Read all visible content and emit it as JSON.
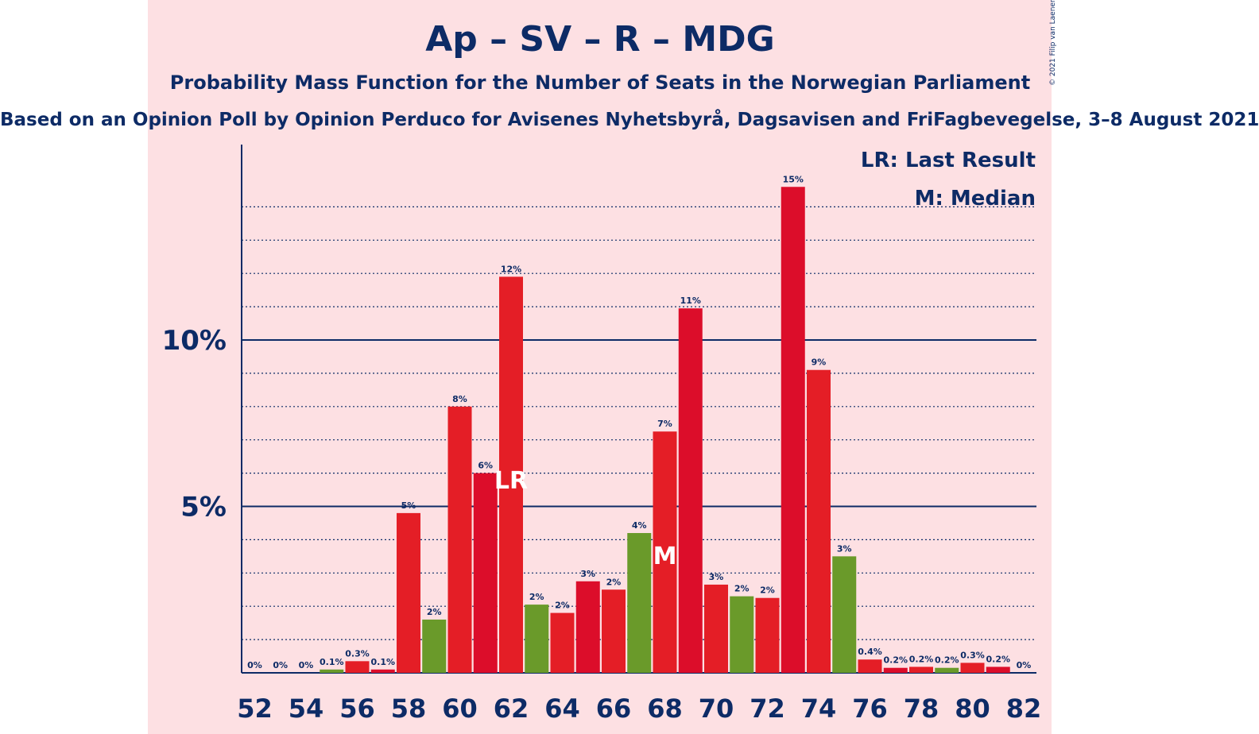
{
  "title": "Ap – SV – R – MDG",
  "subtitle": "Probability Mass Function for the Number of Seats in the Norwegian Parliament",
  "source": "Based on an Opinion Poll by Opinion Perduco for Avisenes Nyhetsbyrå, Dagsavisen and FriFagbevegelse, 3–8 August 2021",
  "copyright": "© 2021 Filip van Laenen",
  "legend": [
    "LR: Last Result",
    "M: Median"
  ],
  "colors": {
    "background": "#fde0e3",
    "text": "#0d2b66",
    "red_a": "#e41e26",
    "red_b": "#dc0d2a",
    "green": "#6a9a2a"
  },
  "chart_data": {
    "type": "bar",
    "x": [
      52,
      53,
      54,
      55,
      56,
      57,
      58,
      59,
      60,
      61,
      62,
      63,
      64,
      65,
      66,
      67,
      68,
      69,
      70,
      71,
      72,
      73,
      74,
      75,
      76,
      77,
      78,
      79,
      80,
      81,
      82
    ],
    "values": [
      0,
      0,
      0,
      0.1,
      0.35,
      0.1,
      4.8,
      1.6,
      8.0,
      6.0,
      11.9,
      2.05,
      1.8,
      2.75,
      2.5,
      4.2,
      7.25,
      10.95,
      2.65,
      2.3,
      2.25,
      14.6,
      9.1,
      3.5,
      0.4,
      0.15,
      0.18,
      0.15,
      0.3,
      0.18,
      0
    ],
    "labels": [
      "0%",
      "0%",
      "0%",
      "0.1%",
      "0.3%",
      "0.1%",
      "5%",
      "2%",
      "8%",
      "6%",
      "12%",
      "2%",
      "2%",
      "3%",
      "2%",
      "4%",
      "7%",
      "11%",
      "3%",
      "2%",
      "2%",
      "15%",
      "9%",
      "3%",
      "0.4%",
      "0.2%",
      "0.2%",
      "0.2%",
      "0.3%",
      "0.2%",
      "0%"
    ],
    "colors": [
      "red_a",
      "red_b",
      "red_a",
      "green",
      "red_a",
      "red_b",
      "red_a",
      "green",
      "red_a",
      "red_b",
      "red_a",
      "green",
      "red_a",
      "red_b",
      "red_a",
      "green",
      "red_a",
      "red_b",
      "red_a",
      "green",
      "red_a",
      "red_b",
      "red_a",
      "green",
      "red_a",
      "red_b",
      "red_a",
      "green",
      "red_a",
      "red_b",
      "red_a"
    ],
    "x_tick_labels": [
      "52",
      "54",
      "56",
      "58",
      "60",
      "62",
      "64",
      "66",
      "68",
      "70",
      "72",
      "74",
      "76",
      "78",
      "80",
      "82"
    ],
    "y_tick_labels": [
      {
        "value": 5,
        "label": "5%"
      },
      {
        "value": 10,
        "label": "10%"
      }
    ],
    "last_result": {
      "seat": 62,
      "label": "LR"
    },
    "median": {
      "seat": 68,
      "label": "M"
    },
    "ylim": [
      0,
      16
    ],
    "grid": "dotted every 1%, solid at 5% and 10%"
  }
}
